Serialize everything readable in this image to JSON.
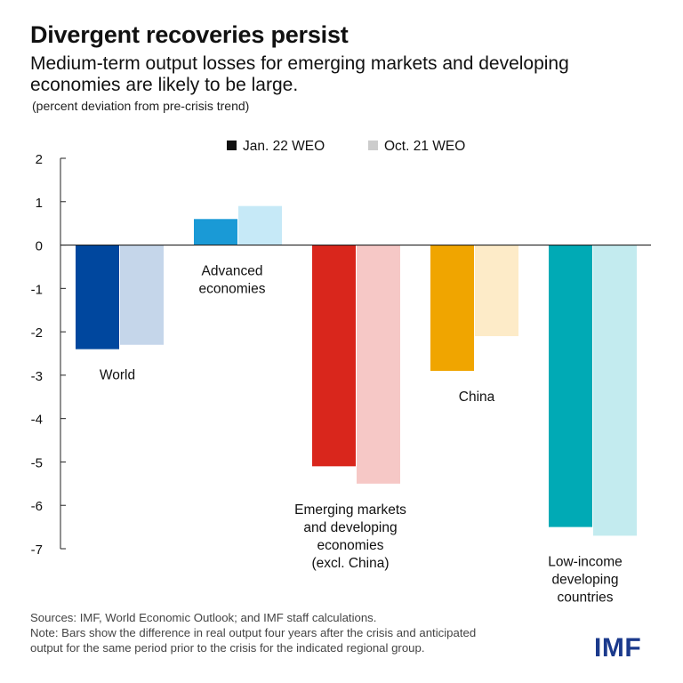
{
  "title": "Divergent recoveries persist",
  "subtitle": "Medium-term output losses for emerging markets and developing economies are likely to be large.",
  "unit_note": "(percent deviation from pre-crisis trend)",
  "chart_data": {
    "type": "bar",
    "title": "Divergent recoveries persist",
    "ylabel": "",
    "xlabel": "",
    "ylim": [
      -7,
      2
    ],
    "yticks": [
      "2",
      "1",
      "0",
      "-1",
      "-2",
      "-3",
      "-4",
      "-5",
      "-6",
      "-7"
    ],
    "ytick_values": [
      2,
      1,
      0,
      -1,
      -2,
      -3,
      -4,
      -5,
      -6,
      -7
    ],
    "legend_position": "top-center",
    "grid": false,
    "categories": [
      {
        "label_lines": [
          "World"
        ]
      },
      {
        "label_lines": [
          "Advanced",
          "economies"
        ]
      },
      {
        "label_lines": [
          "Emerging markets",
          "and developing",
          "economies",
          "(excl. China)"
        ]
      },
      {
        "label_lines": [
          "China"
        ]
      },
      {
        "label_lines": [
          "Low-income",
          "developing",
          "countries"
        ]
      }
    ],
    "series": [
      {
        "name": "Jan. 22 WEO",
        "values": [
          -2.4,
          0.6,
          -5.1,
          -2.9,
          -6.5
        ],
        "colors": [
          "#00479e",
          "#1a9ad6",
          "#d9261c",
          "#f0a500",
          "#00aab5"
        ]
      },
      {
        "name": "Oct. 21 WEO",
        "values": [
          -2.3,
          0.9,
          -5.5,
          -2.1,
          -6.7
        ],
        "colors": [
          "#c5d6ea",
          "#c6e9f7",
          "#f6c8c6",
          "#fdebc8",
          "#c3ebef"
        ]
      }
    ],
    "legend_colors": [
      "#111111",
      "#cccccc"
    ]
  },
  "footer": {
    "sources": "Sources: IMF, World Economic Outlook; and IMF staff calculations.",
    "note_line1": "Note: Bars show the difference in real output four years after the crisis and anticipated",
    "note_line2": "output for the same period prior to the crisis for the indicated regional group."
  },
  "logo": "IMF",
  "colors": {
    "axis": "#222222",
    "text": "#111111",
    "logo": "#1b3a8c"
  }
}
